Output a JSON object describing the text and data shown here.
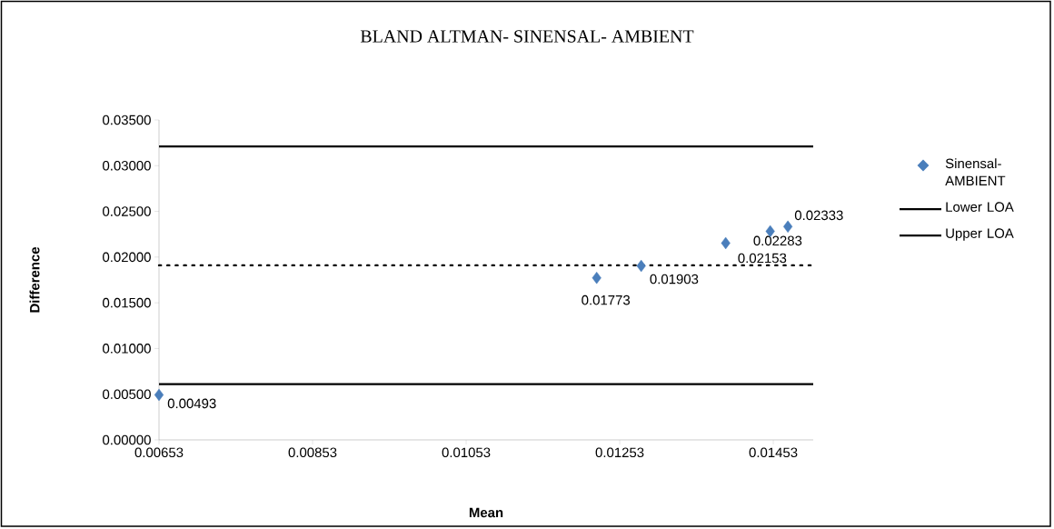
{
  "chart_data": {
    "type": "scatter",
    "title": "BLAND ALTMAN- SINENSAL- AMBIENT",
    "xlabel": "Mean",
    "ylabel": "Difference",
    "series": [
      {
        "name": "Sinensal-AMBIENT",
        "color": "#4a7ebb",
        "marker": "diamond",
        "x": [
          0.00653,
          0.01223,
          0.01281,
          0.01391,
          0.01449,
          0.01472
        ],
        "values": [
          0.00493,
          0.01773,
          0.01903,
          0.02153,
          0.02283,
          0.02333
        ],
        "value_labels": [
          "0.00493",
          "0.01773",
          "0.01903",
          "0.02153",
          "0.02283",
          "0.02333"
        ]
      },
      {
        "name": "Lower LOA",
        "type": "line",
        "color": "#000000",
        "marker": "none",
        "line_style": "solid",
        "x": [
          0.00653,
          0.01505
        ],
        "values": [
          0.0061,
          0.0061
        ]
      },
      {
        "name": "Upper LOA",
        "type": "line",
        "color": "#000000",
        "marker": "none",
        "line_style": "solid",
        "x": [
          0.00653,
          0.01505
        ],
        "values": [
          0.0321,
          0.0321
        ]
      }
    ],
    "ref_lines": [
      {
        "axis": "y",
        "value": 0.0191,
        "color": "#000000",
        "line_style": "dotted"
      }
    ],
    "xlim": [
      0.00653,
      0.01505
    ],
    "xticks": [
      0.00653,
      0.00853,
      0.01053,
      0.01253,
      0.01453
    ],
    "ylim": [
      0,
      0.035
    ],
    "yticks": [
      {
        "value": 0,
        "label": "0.00000"
      },
      {
        "value": 0.005,
        "label": "0.00500"
      },
      {
        "value": 0.01,
        "label": "0.01000"
      },
      {
        "value": 0.015,
        "label": "0.01500"
      },
      {
        "value": 0.02,
        "label": "0.02000"
      },
      {
        "value": 0.025,
        "label": "0.02500"
      },
      {
        "value": 0.03,
        "label": "0.03000"
      },
      {
        "value": 0.035,
        "label": "0.03500"
      }
    ],
    "grid": false,
    "legend": "right"
  }
}
